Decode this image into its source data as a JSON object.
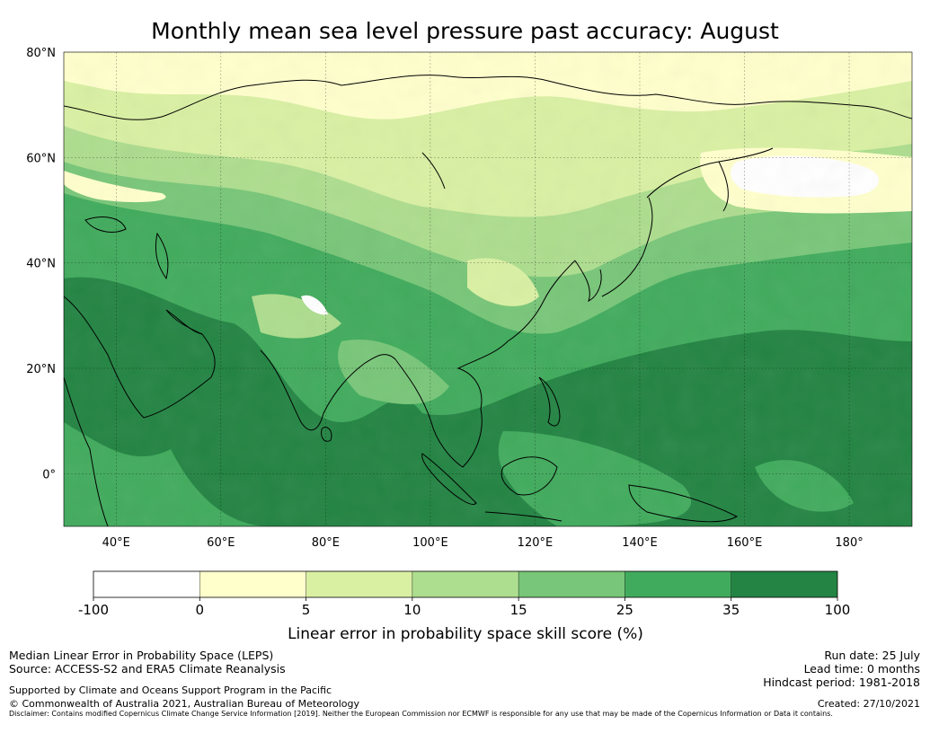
{
  "title": "Monthly mean sea level pressure past accuracy: August",
  "map": {
    "lon_range": [
      30,
      192
    ],
    "lat_range": [
      -10,
      80
    ],
    "lat_ticks": [
      {
        "value": 80,
        "label": "80°N"
      },
      {
        "value": 60,
        "label": "60°N"
      },
      {
        "value": 40,
        "label": "40°N"
      },
      {
        "value": 20,
        "label": "20°N"
      },
      {
        "value": 0,
        "label": "0°"
      }
    ],
    "lon_ticks": [
      {
        "value": 40,
        "label": "40°E"
      },
      {
        "value": 60,
        "label": "60°E"
      },
      {
        "value": 80,
        "label": "80°E"
      },
      {
        "value": 100,
        "label": "100°E"
      },
      {
        "value": 120,
        "label": "120°E"
      },
      {
        "value": 140,
        "label": "140°E"
      },
      {
        "value": 160,
        "label": "160°E"
      },
      {
        "value": 180,
        "label": "180°"
      }
    ],
    "gridlines": true
  },
  "colorbar": {
    "label": "Linear error in probability space skill score (%)",
    "ticks": [
      "-100",
      "0",
      "5",
      "10",
      "15",
      "25",
      "35",
      "100"
    ],
    "colors": [
      "#ffffff",
      "#ffffcc",
      "#d9f0a3",
      "#addd8e",
      "#78c679",
      "#41ab5d",
      "#238443"
    ]
  },
  "footer": {
    "left1": "Median Linear Error in Probability Space (LEPS)",
    "left2": "Source: ACCESS-S2 and ERA5 Climate Reanalysis",
    "left3": "Supported by Climate and Oceans Support Program in the Pacific",
    "left4": "© Commonwealth of Australia 2021, Australian Bureau of Meteorology",
    "right1": "Run date: 25 July",
    "right2": "Lead time: 0 months",
    "right3": "Hindcast period: 1981-2018",
    "right4": "Created: 27/10/2021",
    "disclaimer": "Disclaimer: Contains modified Copernicus Climate Change Service Information [2019]. Neither the European Commission nor ECMWF is responsible for any use that may be made of the Copernicus Information or Data it contains."
  }
}
